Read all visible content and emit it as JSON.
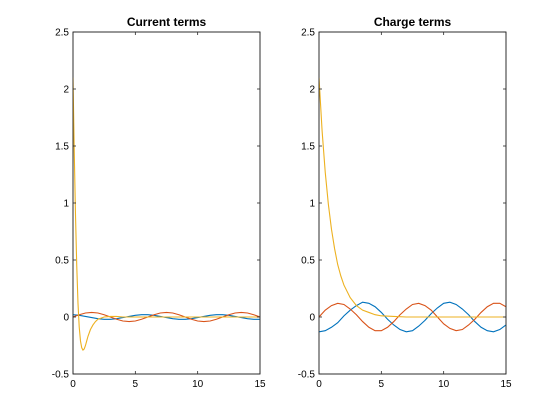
{
  "chart_data": [
    {
      "type": "line",
      "title": "Current terms",
      "xlabel": "",
      "ylabel": "",
      "xlim": [
        0,
        15
      ],
      "ylim": [
        -0.5,
        2.5
      ],
      "xticks": [
        "0",
        "5",
        "10",
        "15"
      ],
      "yticks": [
        "-0.5",
        "0",
        "0.5",
        "1",
        "1.5",
        "2",
        "2.5"
      ],
      "grid": false,
      "series": [
        {
          "color": "#0072BD",
          "x": [
            0,
            0.5,
            1,
            1.5,
            2,
            2.5,
            3,
            3.5,
            4,
            4.5,
            5,
            5.5,
            6,
            6.5,
            7,
            7.5,
            8,
            8.5,
            9,
            9.5,
            10,
            10.5,
            11,
            11.5,
            12,
            12.5,
            13,
            13.5,
            14,
            14.5,
            15
          ],
          "y": [
            0.02,
            0.015,
            0.005,
            -0.005,
            -0.015,
            -0.02,
            -0.02,
            -0.015,
            -0.005,
            0.005,
            0.015,
            0.02,
            0.02,
            0.015,
            0.005,
            -0.005,
            -0.015,
            -0.02,
            -0.02,
            -0.015,
            -0.005,
            0.005,
            0.015,
            0.02,
            0.02,
            0.015,
            0.005,
            -0.005,
            -0.015,
            -0.02,
            -0.02
          ]
        },
        {
          "color": "#D95319",
          "x": [
            0,
            0.5,
            1,
            1.5,
            2,
            2.5,
            3,
            3.5,
            4,
            4.5,
            5,
            5.5,
            6,
            6.5,
            7,
            7.5,
            8,
            8.5,
            9,
            9.5,
            10,
            10.5,
            11,
            11.5,
            12,
            12.5,
            13,
            13.5,
            14,
            14.5,
            15
          ],
          "y": [
            0,
            0.02,
            0.035,
            0.04,
            0.035,
            0.02,
            0,
            -0.02,
            -0.035,
            -0.04,
            -0.035,
            -0.02,
            0,
            0.02,
            0.035,
            0.04,
            0.035,
            0.02,
            0,
            -0.02,
            -0.035,
            -0.04,
            -0.035,
            -0.02,
            0,
            0.02,
            0.035,
            0.04,
            0.035,
            0.02,
            0
          ]
        },
        {
          "color": "#EDB120",
          "x": [
            0,
            0.1,
            0.2,
            0.3,
            0.4,
            0.5,
            0.6,
            0.7,
            0.8,
            0.9,
            1.0,
            1.1,
            1.2,
            1.4,
            1.6,
            1.8,
            2.0,
            2.5,
            3.0,
            3.5,
            4.0,
            5.0,
            6.0,
            7.0,
            8.0,
            9.0,
            10.0,
            11.0,
            12.0,
            13.0,
            14.0,
            15.0
          ],
          "y": [
            2.1,
            1.45,
            0.9,
            0.45,
            0.12,
            -0.09,
            -0.21,
            -0.27,
            -0.29,
            -0.28,
            -0.25,
            -0.21,
            -0.17,
            -0.11,
            -0.07,
            -0.04,
            -0.02,
            0.0,
            0.005,
            0.005,
            0.0,
            0.0,
            0.0,
            0.0,
            0.0,
            0.0,
            0.0,
            0.0,
            0.0,
            0.0,
            0.0,
            0.0
          ]
        }
      ]
    },
    {
      "type": "line",
      "title": "Charge terms",
      "xlabel": "",
      "ylabel": "",
      "xlim": [
        0,
        15
      ],
      "ylim": [
        -0.5,
        2.5
      ],
      "xticks": [
        "0",
        "5",
        "10",
        "15"
      ],
      "yticks": [
        "-0.5",
        "0",
        "0.5",
        "1",
        "1.5",
        "2",
        "2.5"
      ],
      "grid": false,
      "series": [
        {
          "color": "#0072BD",
          "x": [
            0,
            0.5,
            1,
            1.5,
            2,
            2.5,
            3,
            3.5,
            4,
            4.5,
            5,
            5.5,
            6,
            6.5,
            7,
            7.5,
            8,
            8.5,
            9,
            9.5,
            10,
            10.5,
            11,
            11.5,
            12,
            12.5,
            13,
            13.5,
            14,
            14.5,
            15
          ],
          "y": [
            -0.13,
            -0.12,
            -0.09,
            -0.05,
            0.01,
            0.06,
            0.1,
            0.13,
            0.12,
            0.09,
            0.04,
            -0.02,
            -0.07,
            -0.11,
            -0.13,
            -0.12,
            -0.08,
            -0.03,
            0.03,
            0.08,
            0.12,
            0.13,
            0.11,
            0.07,
            0.02,
            -0.04,
            -0.09,
            -0.12,
            -0.13,
            -0.11,
            -0.07
          ]
        },
        {
          "color": "#D95319",
          "x": [
            0,
            0.5,
            1,
            1.5,
            2,
            2.5,
            3,
            3.5,
            4,
            4.5,
            5,
            5.5,
            6,
            6.5,
            7,
            7.5,
            8,
            8.5,
            9,
            9.5,
            10,
            10.5,
            11,
            11.5,
            12,
            12.5,
            13,
            13.5,
            14,
            14.5,
            15
          ],
          "y": [
            0.0,
            0.06,
            0.1,
            0.12,
            0.11,
            0.07,
            0.02,
            -0.04,
            -0.09,
            -0.12,
            -0.12,
            -0.09,
            -0.04,
            0.02,
            0.07,
            0.11,
            0.12,
            0.1,
            0.06,
            0.0,
            -0.06,
            -0.1,
            -0.12,
            -0.11,
            -0.07,
            -0.02,
            0.04,
            0.09,
            0.12,
            0.12,
            0.09
          ]
        },
        {
          "color": "#EDB120",
          "x": [
            0,
            0.25,
            0.5,
            0.75,
            1.0,
            1.25,
            1.5,
            1.75,
            2.0,
            2.5,
            3.0,
            3.5,
            4.0,
            4.5,
            5.0,
            6.0,
            7.0,
            8.0,
            9.0,
            10.0,
            11.0,
            12.0,
            13.0,
            14.0,
            15.0
          ],
          "y": [
            2.1,
            1.63,
            1.27,
            0.99,
            0.77,
            0.6,
            0.46,
            0.36,
            0.28,
            0.17,
            0.1,
            0.06,
            0.04,
            0.02,
            0.01,
            0.005,
            0.0,
            0.0,
            0.0,
            0.0,
            0.0,
            0.0,
            0.0,
            0.0,
            0.0
          ]
        }
      ]
    }
  ]
}
